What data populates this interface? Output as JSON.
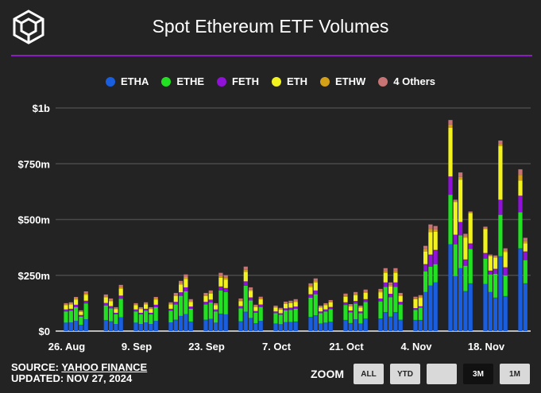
{
  "header": {
    "title": "Spot Ethereum ETF Volumes"
  },
  "footer": {
    "source_label": "SOURCE: ",
    "source_link": "YAHOO FINANCE",
    "updated": "UPDATED: NOV 27, 2024"
  },
  "zoom": {
    "label": "ZOOM",
    "buttons": [
      {
        "label": "ALL",
        "active": false
      },
      {
        "label": "YTD",
        "active": false
      },
      {
        "label": "",
        "active": false
      },
      {
        "label": "3M",
        "active": true
      },
      {
        "label": "1M",
        "active": false
      }
    ]
  },
  "chart_data": {
    "type": "bar",
    "stacked": true,
    "title": "Spot Ethereum ETF Volumes",
    "ylabel": "",
    "xlabel": "",
    "ylim": [
      0,
      1000
    ],
    "yticks": [
      {
        "v": 0,
        "label": "$0"
      },
      {
        "v": 250,
        "label": "$250m"
      },
      {
        "v": 500,
        "label": "$500m"
      },
      {
        "v": 750,
        "label": "$750m"
      },
      {
        "v": 1000,
        "label": "$1b"
      }
    ],
    "xticks": [
      {
        "date": "2024-08-26",
        "label": "26. Aug"
      },
      {
        "date": "2024-09-09",
        "label": "9. Sep"
      },
      {
        "date": "2024-09-23",
        "label": "23. Sep"
      },
      {
        "date": "2024-10-07",
        "label": "7. Oct"
      },
      {
        "date": "2024-10-21",
        "label": "21. Oct"
      },
      {
        "date": "2024-11-04",
        "label": "4. Nov"
      },
      {
        "date": "2024-11-18",
        "label": "18. Nov"
      }
    ],
    "legend_position": "top-center",
    "grid": true,
    "x": [
      "2024-08-26",
      "2024-08-27",
      "2024-08-28",
      "2024-08-29",
      "2024-08-30",
      "2024-09-03",
      "2024-09-04",
      "2024-09-05",
      "2024-09-06",
      "2024-09-09",
      "2024-09-10",
      "2024-09-11",
      "2024-09-12",
      "2024-09-13",
      "2024-09-16",
      "2024-09-17",
      "2024-09-18",
      "2024-09-19",
      "2024-09-20",
      "2024-09-23",
      "2024-09-24",
      "2024-09-25",
      "2024-09-26",
      "2024-09-27",
      "2024-09-30",
      "2024-10-01",
      "2024-10-02",
      "2024-10-03",
      "2024-10-04",
      "2024-10-07",
      "2024-10-08",
      "2024-10-09",
      "2024-10-10",
      "2024-10-11",
      "2024-10-14",
      "2024-10-15",
      "2024-10-16",
      "2024-10-17",
      "2024-10-18",
      "2024-10-21",
      "2024-10-22",
      "2024-10-23",
      "2024-10-24",
      "2024-10-25",
      "2024-10-28",
      "2024-10-29",
      "2024-10-30",
      "2024-10-31",
      "2024-11-01",
      "2024-11-04",
      "2024-11-05",
      "2024-11-06",
      "2024-11-07",
      "2024-11-08",
      "2024-11-11",
      "2024-11-12",
      "2024-11-13",
      "2024-11-14",
      "2024-11-15",
      "2024-11-18",
      "2024-11-19",
      "2024-11-20",
      "2024-11-21",
      "2024-11-22",
      "2024-11-25",
      "2024-11-26"
    ],
    "series": [
      {
        "name": "ETHA",
        "color": "#1a5ee0",
        "values": [
          38,
          39,
          46,
          28,
          53,
          49,
          44,
          32,
          62,
          38,
          32,
          39,
          32,
          46,
          39,
          51,
          68,
          76,
          43,
          51,
          55,
          38,
          78,
          75,
          44,
          87,
          59,
          35,
          46,
          34,
          31,
          40,
          41,
          43,
          64,
          71,
          34,
          38,
          42,
          50,
          36,
          53,
          34,
          56,
          57,
          85,
          65,
          85,
          51,
          50,
          50,
          175,
          204,
          218,
          389,
          246,
          282,
          179,
          214,
          211,
          175,
          150,
          336,
          157,
          371,
          214
        ]
      },
      {
        "name": "ETHE",
        "color": "#22e022",
        "values": [
          50,
          52,
          61,
          37,
          71,
          66,
          58,
          43,
          83,
          50,
          43,
          52,
          43,
          61,
          52,
          68,
          90,
          102,
          57,
          68,
          73,
          50,
          104,
          100,
          58,
          116,
          78,
          47,
          62,
          46,
          42,
          53,
          54,
          57,
          86,
          94,
          46,
          50,
          56,
          67,
          48,
          70,
          46,
          74,
          76,
          113,
          87,
          113,
          68,
          45,
          55,
          93,
          85,
          82,
          222,
          143,
          147,
          114,
          154,
          114,
          79,
          107,
          185,
          93,
          161,
          104
        ]
      },
      {
        "name": "FETH",
        "color": "#9012d8",
        "values": [
          9,
          9,
          11,
          7,
          12,
          11,
          10,
          7,
          14,
          9,
          7,
          9,
          7,
          11,
          9,
          12,
          16,
          18,
          10,
          12,
          13,
          9,
          18,
          18,
          10,
          20,
          14,
          8,
          11,
          8,
          7,
          9,
          10,
          10,
          15,
          17,
          8,
          9,
          10,
          12,
          8,
          12,
          8,
          13,
          13,
          20,
          15,
          20,
          12,
          8,
          6,
          32,
          54,
          64,
          82,
          43,
          60,
          28,
          25,
          25,
          17,
          22,
          68,
          36,
          75,
          39
        ]
      },
      {
        "name": "ETH",
        "color": "#f2f21e",
        "values": [
          19,
          19,
          23,
          14,
          27,
          25,
          22,
          16,
          31,
          19,
          16,
          19,
          16,
          23,
          19,
          26,
          34,
          38,
          21,
          26,
          27,
          19,
          39,
          38,
          22,
          43,
          29,
          18,
          23,
          17,
          16,
          20,
          20,
          21,
          32,
          35,
          17,
          19,
          21,
          25,
          18,
          26,
          17,
          28,
          28,
          42,
          33,
          42,
          26,
          40,
          38,
          57,
          100,
          82,
          218,
          147,
          190,
          97,
          136,
          107,
          65,
          50,
          240,
          68,
          68,
          36
        ]
      },
      {
        "name": "ETHW",
        "color": "#d4a017",
        "values": [
          4,
          4,
          5,
          3,
          5,
          5,
          4,
          3,
          6,
          4,
          3,
          4,
          3,
          5,
          4,
          5,
          7,
          8,
          4,
          5,
          5,
          4,
          8,
          8,
          4,
          9,
          6,
          4,
          5,
          3,
          3,
          4,
          4,
          4,
          6,
          7,
          3,
          4,
          4,
          5,
          4,
          5,
          3,
          6,
          6,
          8,
          7,
          8,
          5,
          4,
          4,
          10,
          15,
          10,
          15,
          4,
          12,
          8,
          3,
          5,
          3,
          4,
          10,
          7,
          25,
          10
        ]
      },
      {
        "name": "4 Others",
        "color": "#c87474",
        "values": [
          5,
          6,
          7,
          4,
          10,
          8,
          8,
          6,
          11,
          5,
          6,
          6,
          6,
          7,
          6,
          9,
          10,
          12,
          8,
          9,
          9,
          5,
          14,
          11,
          8,
          14,
          10,
          6,
          7,
          6,
          5,
          6,
          7,
          8,
          11,
          12,
          6,
          5,
          6,
          9,
          7,
          9,
          6,
          9,
          9,
          14,
          11,
          14,
          9,
          7,
          8,
          15,
          20,
          15,
          20,
          6,
          20,
          10,
          4,
          6,
          4,
          6,
          15,
          10,
          25,
          15
        ]
      }
    ]
  }
}
